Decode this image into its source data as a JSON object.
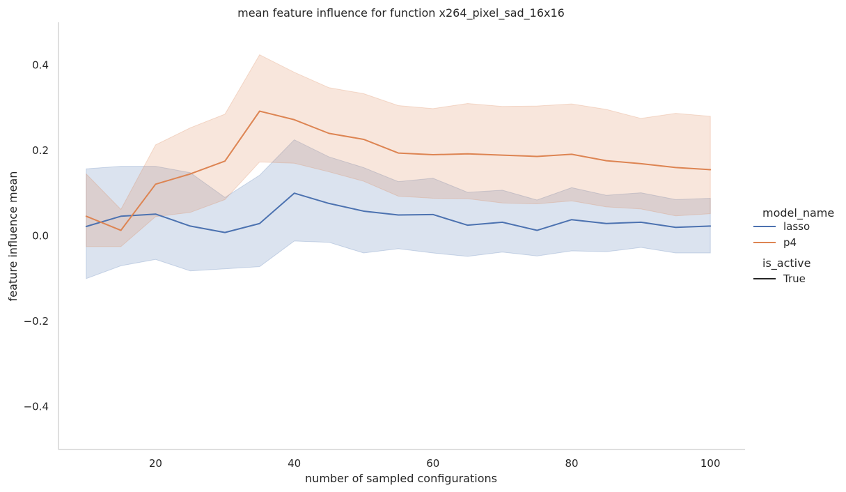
{
  "chart_data": {
    "type": "line",
    "title": "mean feature influence for function x264_pixel_sad_16x16",
    "xlabel": "number of sampled configurations",
    "ylabel": "feature influence mean",
    "xlim": [
      6,
      105
    ],
    "ylim": [
      -0.5,
      0.5
    ],
    "xticks": [
      20,
      40,
      60,
      80,
      100
    ],
    "yticks": [
      -0.4,
      -0.2,
      0.0,
      0.2,
      0.4
    ],
    "ytick_labels": [
      "−0.4",
      "−0.2",
      "0.0",
      "0.2",
      "0.4"
    ],
    "grid": false,
    "legend_placement": "right",
    "x": [
      10,
      15,
      20,
      25,
      30,
      35,
      40,
      45,
      50,
      55,
      60,
      65,
      70,
      75,
      80,
      85,
      90,
      95,
      100
    ],
    "series": [
      {
        "name": "lasso",
        "color": "#4c72b0",
        "values": [
          0.022,
          0.046,
          0.051,
          0.023,
          0.008,
          0.029,
          0.1,
          0.076,
          0.058,
          0.049,
          0.05,
          0.025,
          0.032,
          0.013,
          0.038,
          0.029,
          0.032,
          0.02,
          0.023
        ],
        "lower": [
          -0.1,
          -0.07,
          -0.055,
          -0.082,
          -0.077,
          -0.072,
          -0.012,
          -0.015,
          -0.04,
          -0.03,
          -0.04,
          -0.048,
          -0.038,
          -0.047,
          -0.035,
          -0.037,
          -0.027,
          -0.04,
          -0.04
        ],
        "upper": [
          0.157,
          0.163,
          0.163,
          0.148,
          0.09,
          0.142,
          0.225,
          0.185,
          0.16,
          0.127,
          0.135,
          0.102,
          0.107,
          0.084,
          0.113,
          0.095,
          0.101,
          0.085,
          0.088
        ]
      },
      {
        "name": "p4",
        "color": "#dd8452",
        "values": [
          0.046,
          0.013,
          0.121,
          0.145,
          0.175,
          0.292,
          0.272,
          0.24,
          0.226,
          0.194,
          0.19,
          0.192,
          0.189,
          0.186,
          0.191,
          0.176,
          0.169,
          0.16,
          0.155
        ],
        "lower": [
          -0.025,
          -0.025,
          0.045,
          0.055,
          0.085,
          0.173,
          0.17,
          0.15,
          0.128,
          0.093,
          0.088,
          0.087,
          0.077,
          0.075,
          0.082,
          0.068,
          0.063,
          0.047,
          0.052
        ],
        "upper": [
          0.145,
          0.062,
          0.213,
          0.253,
          0.285,
          0.424,
          0.383,
          0.347,
          0.333,
          0.305,
          0.298,
          0.31,
          0.303,
          0.304,
          0.309,
          0.296,
          0.275,
          0.287,
          0.28
        ]
      }
    ],
    "legend": {
      "hue_title": "model_name",
      "style_title": "is_active",
      "style_entries": [
        {
          "name": "True",
          "color": "#262626"
        }
      ]
    }
  }
}
